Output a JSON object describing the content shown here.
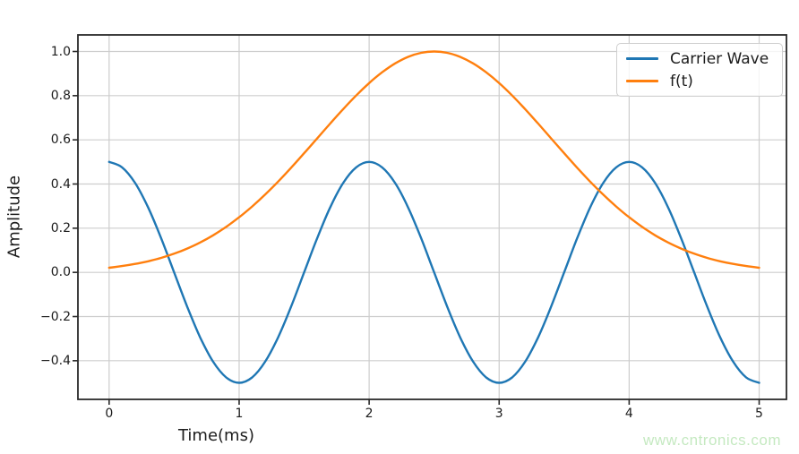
{
  "figure": {
    "watermark": "www.cntronics.com"
  },
  "style": {
    "background": "#ffffff",
    "grid_color": "#cdcdcd",
    "spine_color": "#2a2a2a",
    "text_color": "#1c1c1c",
    "legend_border": "#cfcfcf",
    "watermark_color": "#c5e9c1"
  },
  "chart_data": {
    "type": "line",
    "title": "",
    "xlabel": "Time(ms)",
    "ylabel": "Amplitude",
    "xlim": [
      -0.24,
      5.21
    ],
    "ylim": [
      -0.575,
      1.075
    ],
    "grid": true,
    "legend_position": "upper right",
    "xtick_values": [
      0,
      1,
      2,
      3,
      4,
      5
    ],
    "xtick_labels": [
      "0",
      "1",
      "2",
      "3",
      "4",
      "5"
    ],
    "ytick_values": [
      1.0,
      0.8,
      0.6,
      0.4,
      0.2,
      0.0,
      -0.2,
      -0.4
    ],
    "ytick_labels": [
      "1.0",
      "0.8",
      "0.6",
      "0.4",
      "0.2",
      "0.0",
      "−0.2",
      "−0.4"
    ],
    "x": [
      0,
      0.1,
      0.2,
      0.3,
      0.4,
      0.5,
      0.6,
      0.7,
      0.8,
      0.9,
      1,
      1.1,
      1.2,
      1.3,
      1.4,
      1.5,
      1.6,
      1.7,
      1.8,
      1.9,
      2,
      2.1,
      2.2,
      2.3,
      2.4,
      2.5,
      2.6,
      2.7,
      2.8,
      2.9,
      3,
      3.1,
      3.2,
      3.3,
      3.4,
      3.5,
      3.6,
      3.7,
      3.8,
      3.9,
      4,
      4.1,
      4.2,
      4.3,
      4.4,
      4.5,
      4.6,
      4.7,
      4.8,
      4.9,
      5
    ],
    "series": [
      {
        "name": "Carrier Wave",
        "color": "#1f77b4",
        "values": [
          0.5,
          0.4755,
          0.4045,
          0.2939,
          0.1545,
          0,
          -0.1545,
          -0.2939,
          -0.4045,
          -0.4755,
          -0.5,
          -0.4755,
          -0.4045,
          -0.2939,
          -0.1545,
          0,
          0.1545,
          0.2939,
          0.4045,
          0.4755,
          0.5,
          0.4755,
          0.4045,
          0.2939,
          0.1545,
          0,
          -0.1545,
          -0.2939,
          -0.4045,
          -0.4755,
          -0.5,
          -0.4755,
          -0.4045,
          -0.2939,
          -0.1545,
          0,
          0.1545,
          0.2939,
          0.4045,
          0.4755,
          0.5,
          0.4755,
          0.4045,
          0.2939,
          0.1545,
          0,
          -0.1545,
          -0.2939,
          -0.4045,
          -0.4755,
          -0.5
        ]
      },
      {
        "name": "f(t)",
        "color": "#ff7f0e",
        "values": [
          0.0211,
          0.0286,
          0.0382,
          0.0503,
          0.0657,
          0.0846,
          0.1077,
          0.1353,
          0.1679,
          0.2059,
          0.2494,
          0.2982,
          0.3523,
          0.4111,
          0.4738,
          0.5394,
          0.6065,
          0.6736,
          0.739,
          0.8007,
          0.857,
          0.9059,
          0.9459,
          0.9756,
          0.9938,
          1,
          0.9938,
          0.9756,
          0.9459,
          0.9059,
          0.857,
          0.8007,
          0.739,
          0.6736,
          0.6065,
          0.5394,
          0.4738,
          0.4111,
          0.3523,
          0.2982,
          0.2494,
          0.2059,
          0.1679,
          0.1353,
          0.1077,
          0.0846,
          0.0657,
          0.0503,
          0.0382,
          0.0286,
          0.0211
        ]
      }
    ]
  }
}
